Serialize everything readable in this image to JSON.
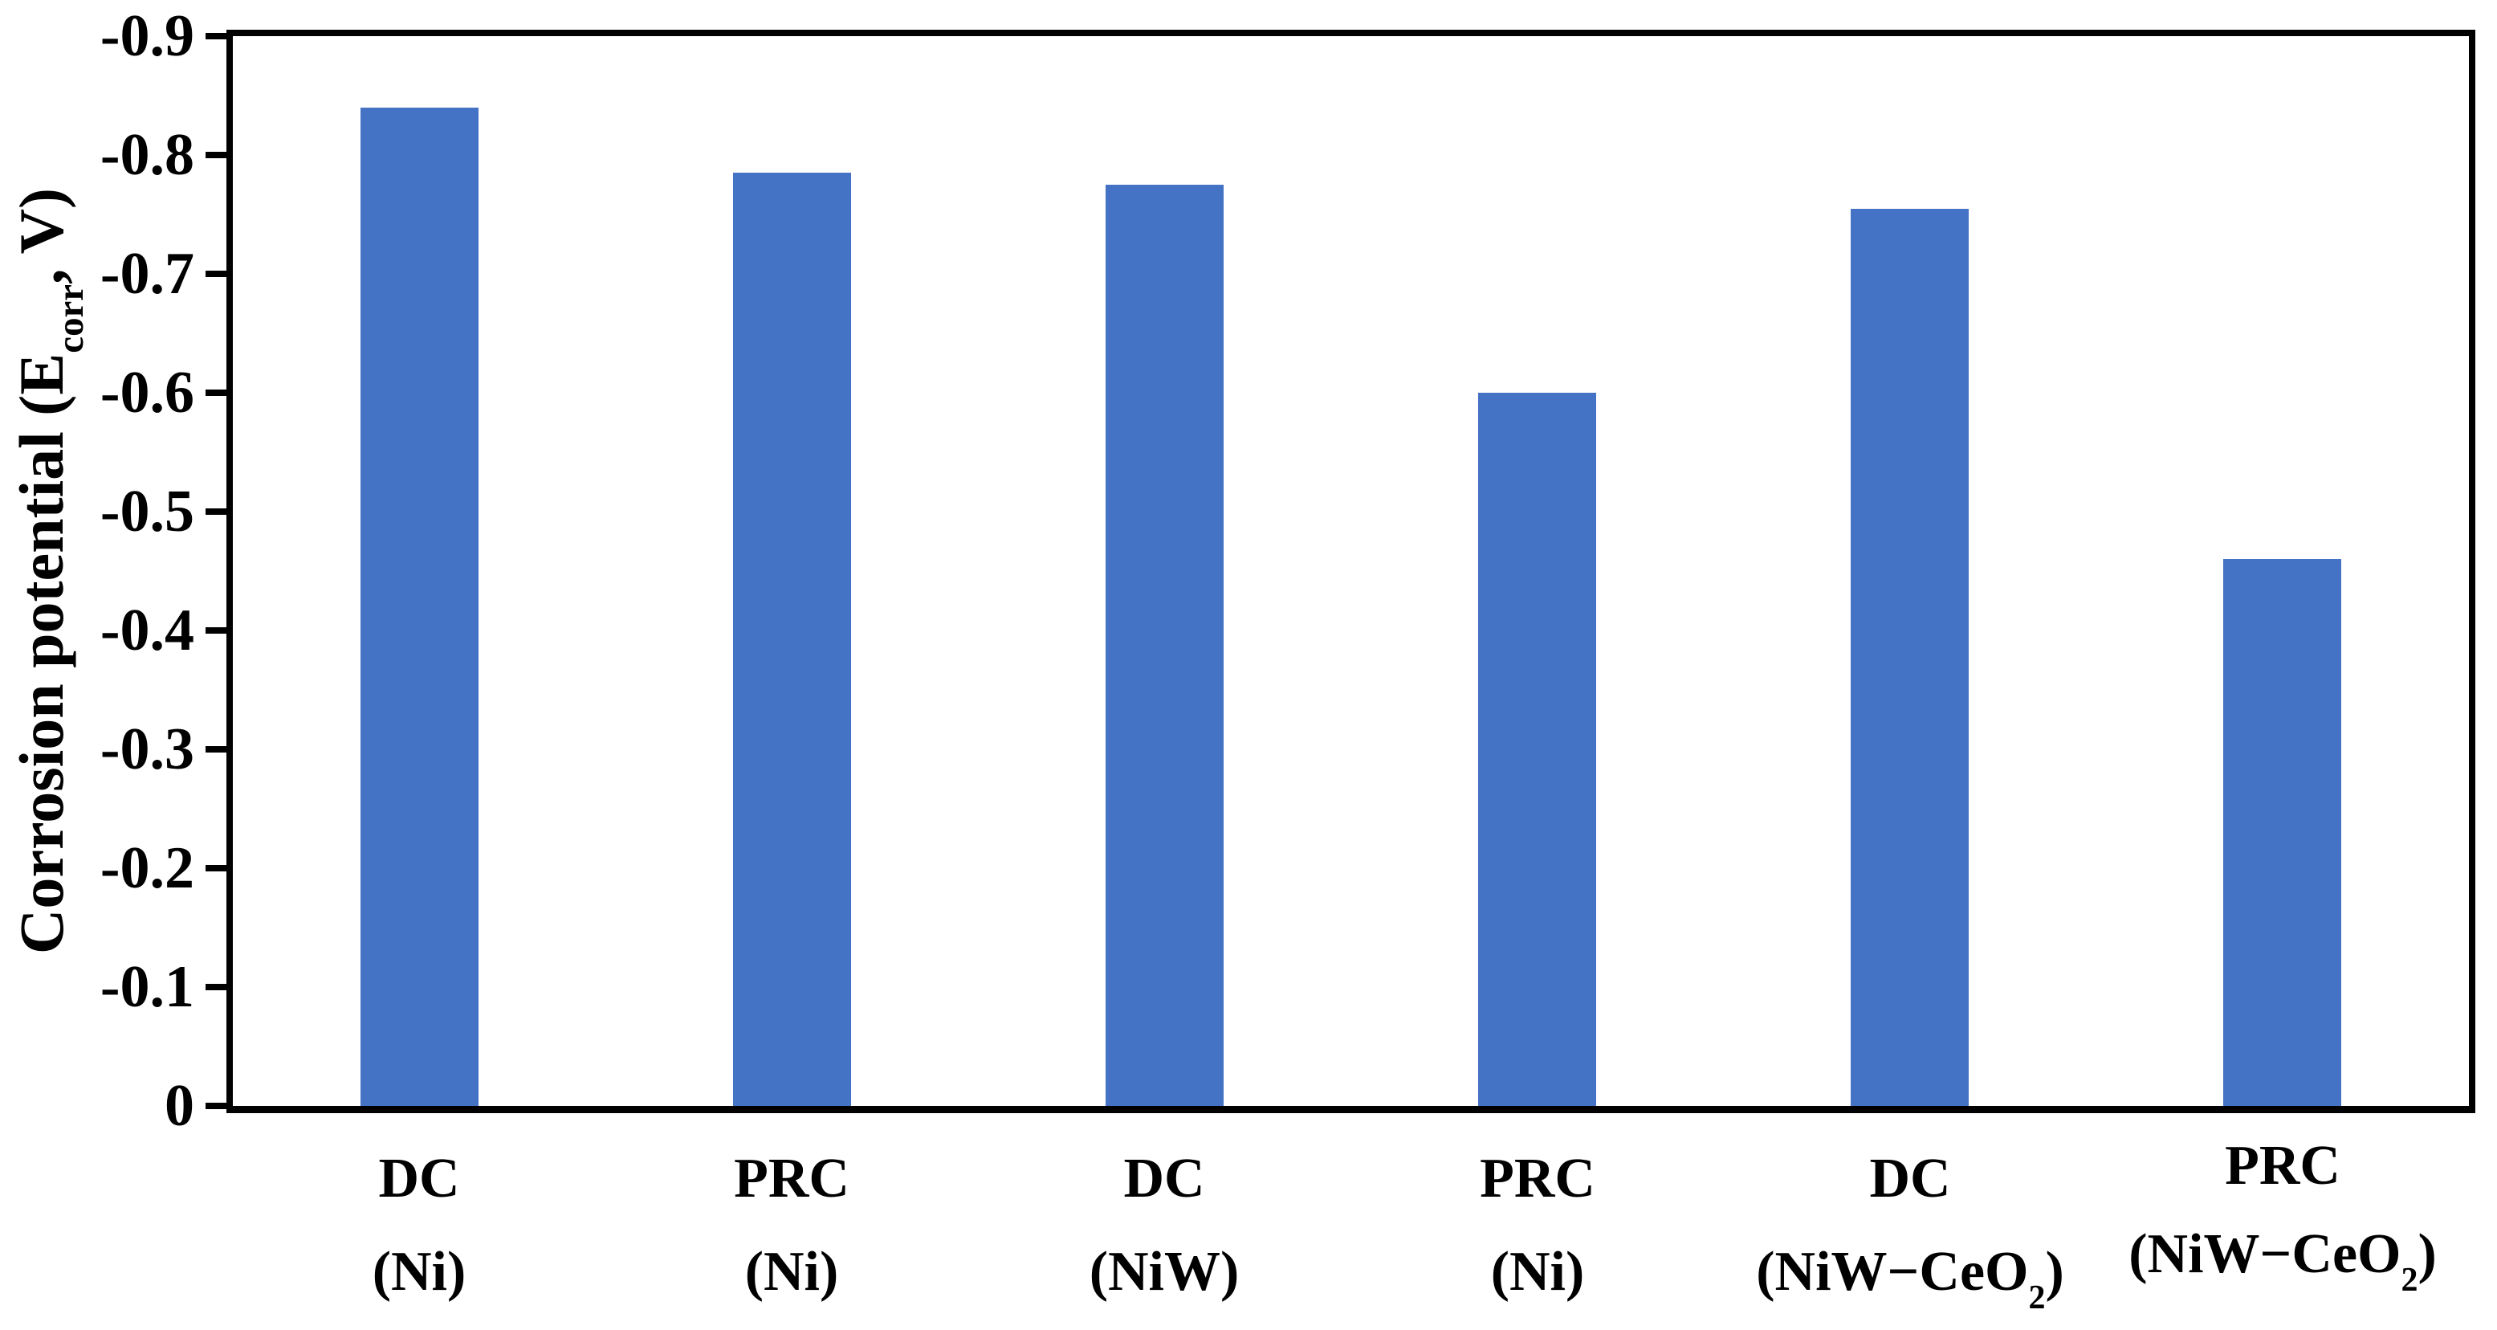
{
  "chart_data": {
    "type": "bar",
    "title": "",
    "ylabel": "Corrosion potential (Ecorr, V)",
    "ylabel_parts": {
      "pre": "Corrosion potential (E",
      "sub": "corr",
      "post": ", V)"
    },
    "yticks": [
      "-0.9",
      "-0.8",
      "-0.7",
      "-0.6",
      "-0.5",
      "-0.4",
      "-0.3",
      "-0.2",
      "-0.1",
      "0"
    ],
    "ylim": [
      0,
      -0.9
    ],
    "y_axis_negative_up": true,
    "grid": false,
    "legend": false,
    "bar_color": "#4472C4",
    "axis_color": "#000000",
    "text_color": "#000000",
    "background_color": "#FFFFFF",
    "categories": [
      {
        "label": "DC (Ni)",
        "line1": "DC",
        "line2_pre": "(Ni)",
        "line2_sub": "",
        "line2_post": ""
      },
      {
        "label": "PRC (Ni)",
        "line1": "PRC",
        "line2_pre": "(Ni)",
        "line2_sub": "",
        "line2_post": ""
      },
      {
        "label": "DC (NiW)",
        "line1": "DC",
        "line2_pre": "(NiW)",
        "line2_sub": "",
        "line2_post": ""
      },
      {
        "label": "PRC (Ni)",
        "line1": "PRC",
        "line2_pre": "(Ni)",
        "line2_sub": "",
        "line2_post": ""
      },
      {
        "label": "DC (NiW−CeO2)",
        "line1": "DC",
        "line2_pre": "(NiW−CeO",
        "line2_sub": "2",
        "line2_post": ")"
      },
      {
        "label": "PRC (NiW−CeO2)",
        "line1": "PRC",
        "line2_pre": "(NiW−CeO",
        "line2_sub": "2",
        "line2_post": ")"
      }
    ],
    "values": [
      -0.84,
      -0.785,
      -0.775,
      -0.6,
      -0.755,
      -0.46
    ]
  }
}
